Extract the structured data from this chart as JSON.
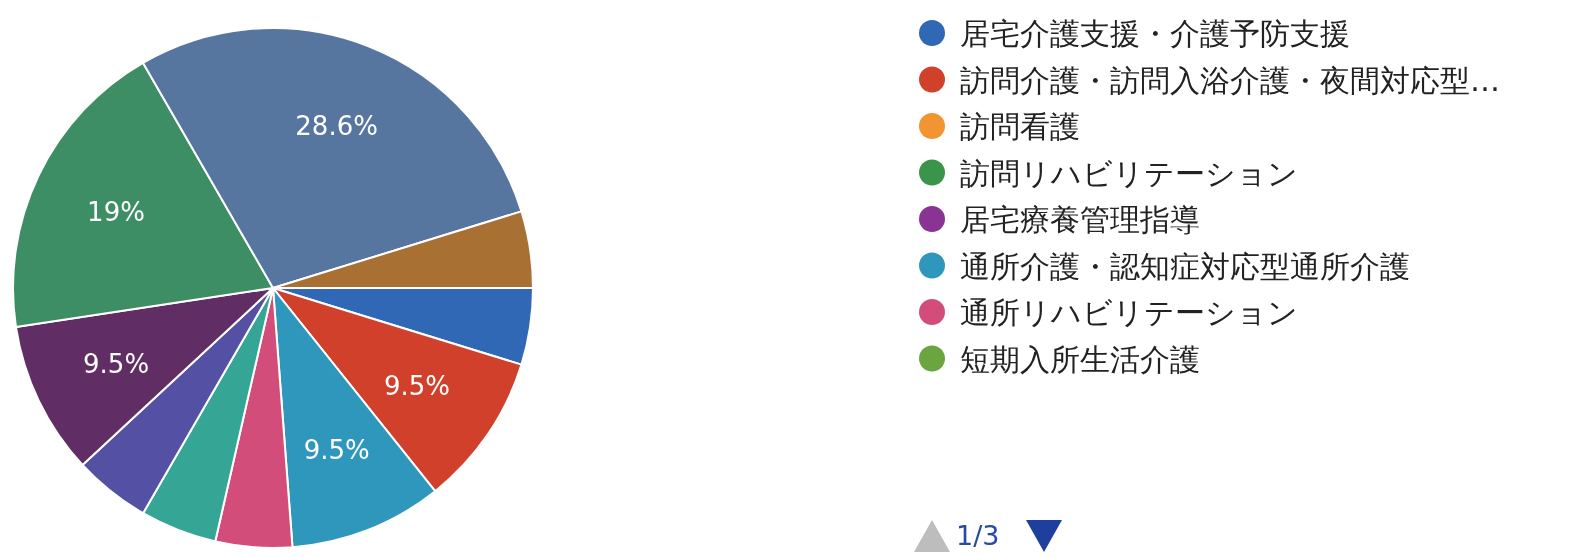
{
  "chart_data": {
    "type": "pie",
    "legend": "right",
    "categories": [
      "居宅介護支援・介護予防支援",
      "訪問介護・訪問入浴介護・夜間対応型…",
      "訪問看護",
      "訪問リハビリテーション",
      "居宅療養管理指導",
      "通所介護・認知症対応型通所介護",
      "通所リハビリテーション",
      "短期入所生活介護",
      null,
      null,
      null,
      null,
      null,
      null
    ],
    "values": [
      4.76,
      9.52,
      0,
      0,
      0,
      9.52,
      4.76,
      0,
      4.76,
      4.76,
      9.52,
      19.05,
      28.57,
      4.76
    ],
    "value_labels": [
      null,
      "9.5%",
      null,
      null,
      null,
      "9.5%",
      null,
      null,
      null,
      null,
      "9.5%",
      "19%",
      "28.6%",
      null
    ],
    "colors": [
      "#3168b5",
      "#d1402a",
      "#f39432",
      "#3a9449",
      "#8b3394",
      "#2f97bb",
      "#d24d7a",
      "#6aa53f",
      "#35a595",
      "#5450a3",
      "#612d65",
      "#3d8e64",
      "#57769f",
      "#a97034"
    ],
    "annotations": [
      "1/3"
    ]
  }
}
